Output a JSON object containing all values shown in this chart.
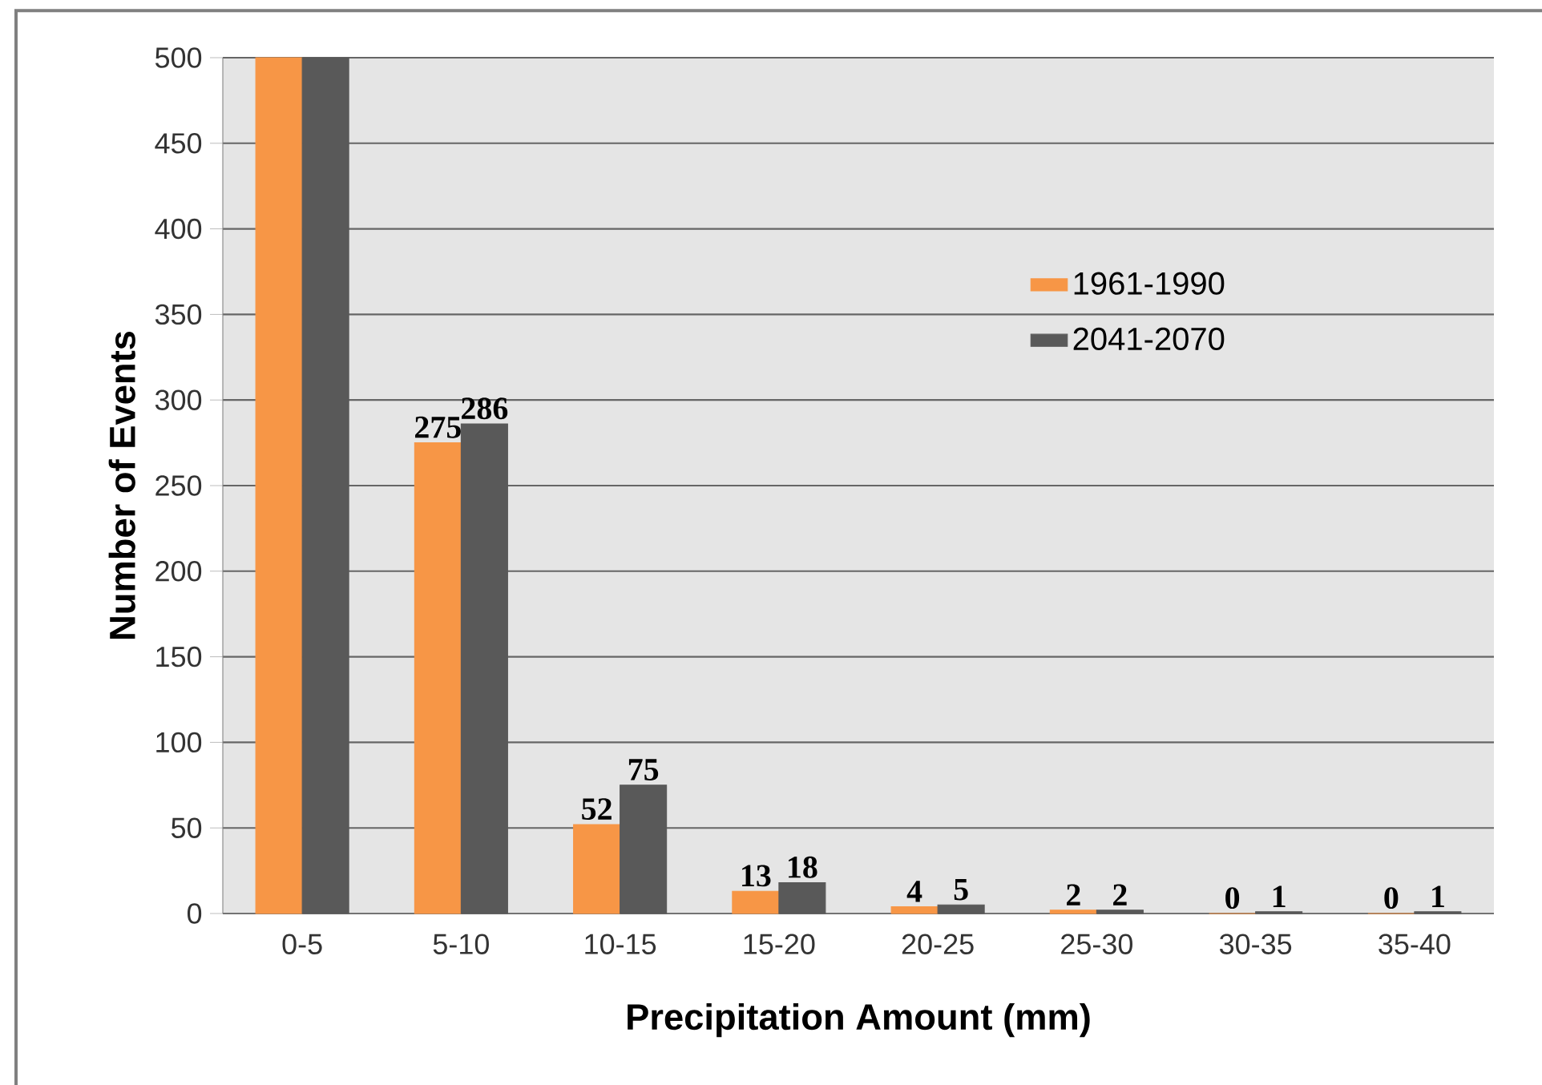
{
  "chart_data": {
    "type": "bar",
    "xlabel": "Precipitation Amount (mm)",
    "ylabel": "Number of Events",
    "categories": [
      "0-5",
      "5-10",
      "10-15",
      "15-20",
      "20-25",
      "25-30",
      "30-35",
      "35-40"
    ],
    "series": [
      {
        "name": "1961-1990",
        "color": "#f79646",
        "values": [
          500,
          275,
          52,
          13,
          4,
          2,
          0,
          0
        ],
        "value_labels": [
          null,
          "275",
          "52",
          "13",
          "4",
          "2",
          "0",
          "0"
        ]
      },
      {
        "name": "2041-2070",
        "color": "#595959",
        "values": [
          500,
          286,
          75,
          18,
          5,
          2,
          1,
          1
        ],
        "value_labels": [
          null,
          "286",
          "75",
          "18",
          "5",
          "2",
          "1",
          "1"
        ]
      }
    ],
    "ylim": [
      0,
      500
    ],
    "yticks": [
      0,
      50,
      100,
      150,
      200,
      250,
      300,
      350,
      400,
      450,
      500
    ],
    "grid": "y",
    "legend": "right"
  }
}
